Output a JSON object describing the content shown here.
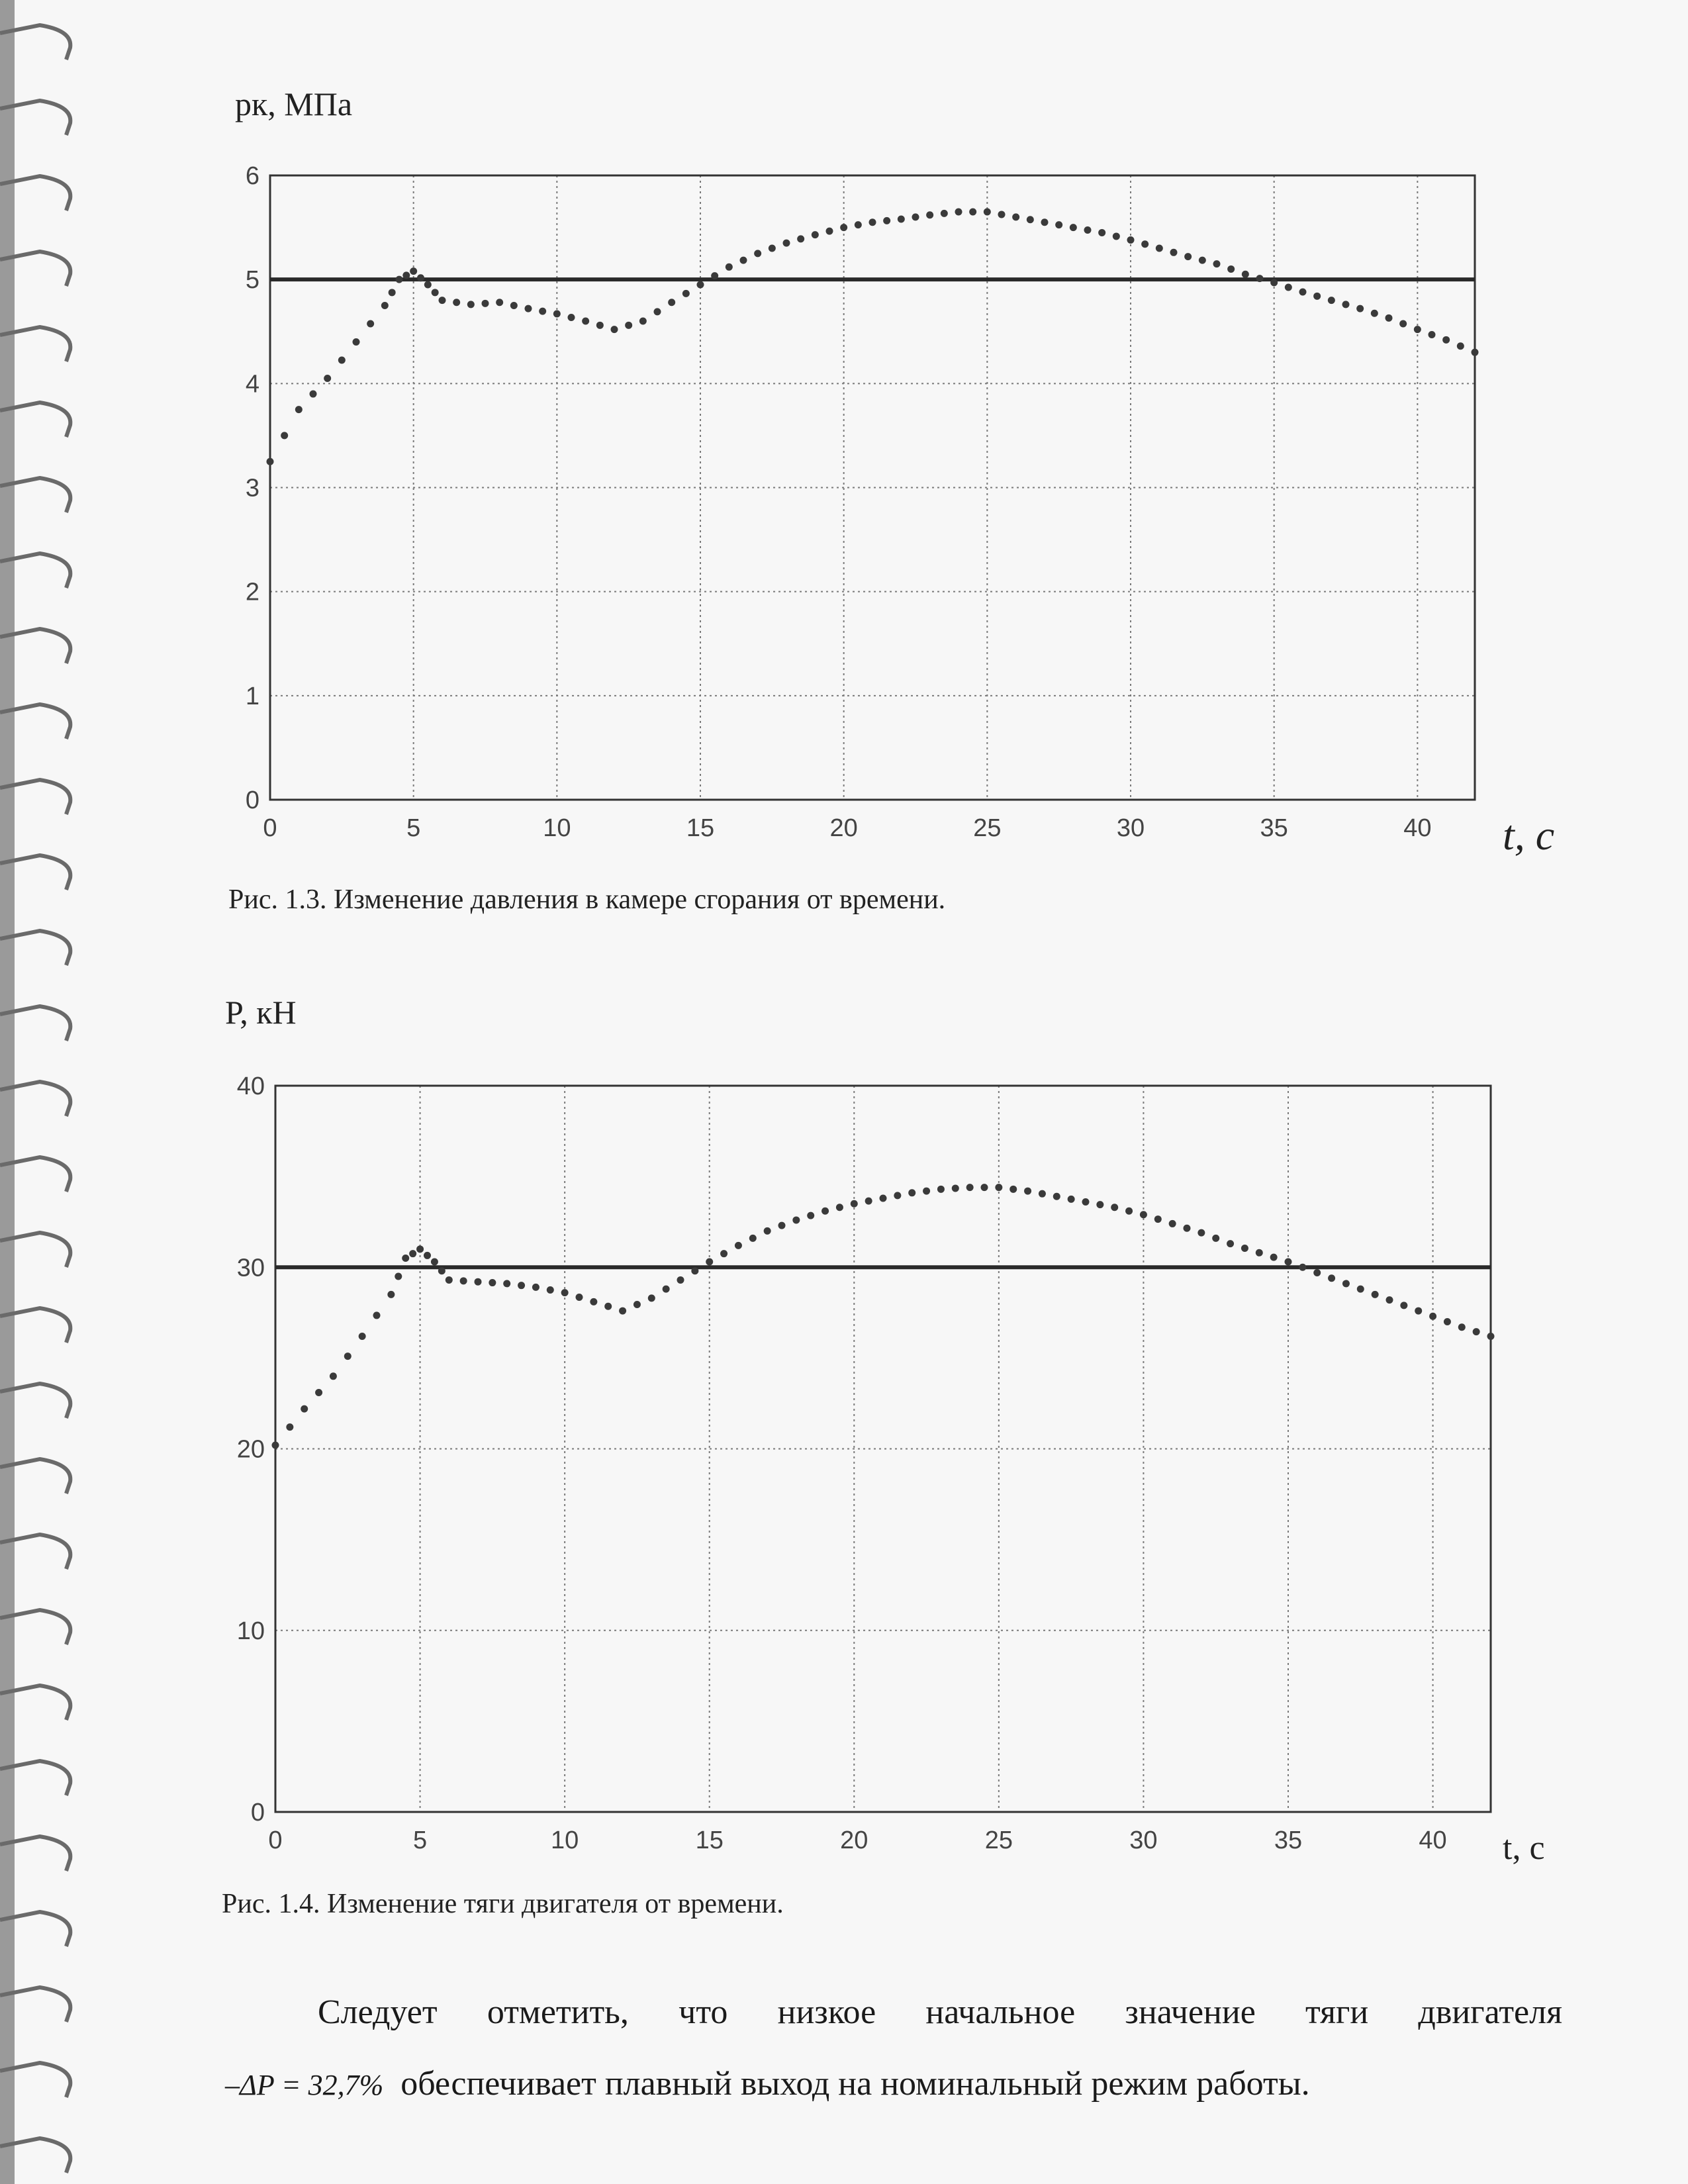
{
  "charts_text": {
    "fig1": {
      "ylabel": "pк, МПа",
      "xlabel": "t, c",
      "caption": "Рис. 1.3. Изменение давления в камере сгорания от времени."
    },
    "fig2": {
      "ylabel": "P, кН",
      "xlabel": "t, c",
      "caption": "Рис. 1.4. Изменение тяги двигателя от времени."
    }
  },
  "paragraph": {
    "line1": "Следует отметить, что низкое начальное значение тяги двигателя",
    "formula": "–ΔP = 32,7%",
    "line2_rest": "обеспечивает плавный выход на номинальный режим работы."
  },
  "colors": {
    "line": "#2a2a2a",
    "dots": "#3a3a3a",
    "grid": "#7a7a7a",
    "frame": "#333333"
  },
  "chart_data": [
    {
      "type": "scatter",
      "xlim": [
        0,
        42
      ],
      "ylim": [
        0,
        6
      ],
      "xticks": [
        0,
        5,
        10,
        15,
        20,
        25,
        30,
        35,
        40
      ],
      "yticks": [
        0,
        1,
        2,
        3,
        4,
        5,
        6
      ],
      "grid": true,
      "reference_line": 5,
      "x": [
        0,
        1,
        2,
        3,
        4,
        4.5,
        5,
        5.5,
        6,
        7,
        8,
        9,
        10,
        11,
        12,
        13,
        14,
        15,
        16,
        17,
        18,
        19,
        20,
        21,
        22,
        23,
        24,
        25,
        26,
        27,
        28,
        29,
        30,
        31,
        32,
        33,
        34,
        35,
        36,
        37,
        38,
        39,
        40,
        41,
        42
      ],
      "y": [
        3.25,
        3.75,
        4.05,
        4.4,
        4.75,
        5.0,
        5.08,
        4.95,
        4.8,
        4.76,
        4.78,
        4.72,
        4.67,
        4.6,
        4.52,
        4.6,
        4.78,
        4.95,
        5.12,
        5.25,
        5.35,
        5.43,
        5.5,
        5.55,
        5.58,
        5.62,
        5.65,
        5.65,
        5.6,
        5.55,
        5.5,
        5.45,
        5.38,
        5.3,
        5.22,
        5.15,
        5.05,
        4.97,
        4.88,
        4.8,
        4.72,
        4.63,
        4.52,
        4.42,
        4.3
      ]
    },
    {
      "type": "scatter",
      "xlim": [
        0,
        42
      ],
      "ylim": [
        0,
        40
      ],
      "xticks": [
        0,
        5,
        10,
        15,
        20,
        25,
        30,
        35,
        40
      ],
      "yticks": [
        0,
        10,
        20,
        30,
        40
      ],
      "grid": true,
      "reference_line": 30,
      "x": [
        0,
        1,
        2,
        3,
        4,
        4.5,
        5,
        5.5,
        6,
        7,
        8,
        9,
        10,
        11,
        12,
        13,
        14,
        15,
        16,
        17,
        18,
        19,
        20,
        21,
        22,
        23,
        24,
        25,
        26,
        27,
        28,
        29,
        30,
        31,
        32,
        33,
        34,
        35,
        36,
        37,
        38,
        39,
        40,
        41,
        42
      ],
      "y": [
        20.2,
        22.2,
        24.0,
        26.2,
        28.5,
        30.5,
        31.0,
        30.3,
        29.3,
        29.2,
        29.1,
        28.9,
        28.6,
        28.1,
        27.6,
        28.3,
        29.3,
        30.3,
        31.2,
        32.0,
        32.6,
        33.1,
        33.5,
        33.8,
        34.1,
        34.3,
        34.4,
        34.4,
        34.2,
        33.9,
        33.6,
        33.3,
        32.9,
        32.4,
        31.9,
        31.3,
        30.8,
        30.3,
        29.7,
        29.1,
        28.5,
        27.9,
        27.3,
        26.7,
        26.2
      ]
    }
  ]
}
